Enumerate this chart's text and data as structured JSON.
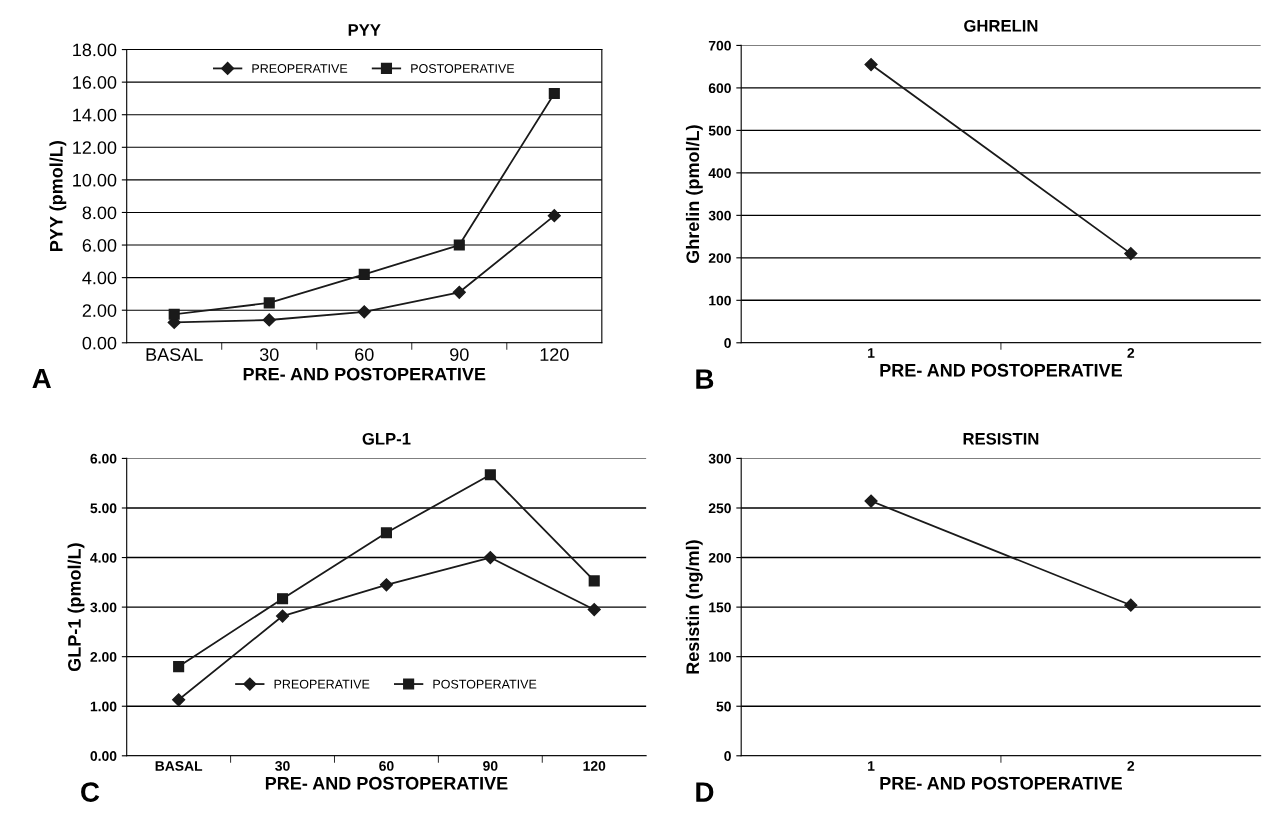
{
  "chart_data": [
    {
      "type": "line",
      "title": "PYY",
      "xlabel": "PRE- AND POSTOPERATIVE",
      "ylabel": "PYY (pmol/L)",
      "annotations": [
        "A"
      ],
      "categories": [
        "BASAL",
        "30",
        "60",
        "90",
        "120"
      ],
      "series": [
        {
          "name": "PREOPERATIVE",
          "color": "#1a1a1a",
          "marker": "diamond",
          "values": [
            1.25,
            1.4,
            1.9,
            3.1,
            7.8
          ]
        },
        {
          "name": "POSTOPERATIVE",
          "color": "#1a1a1a",
          "marker": "square",
          "values": [
            1.75,
            2.45,
            4.2,
            6.0,
            15.3
          ]
        }
      ],
      "ylim": [
        0,
        18
      ],
      "yticks": [
        {
          "value": 0,
          "label": "0.00"
        },
        {
          "value": 2,
          "label": "2.00"
        },
        {
          "value": 4,
          "label": "4.00"
        },
        {
          "value": 6,
          "label": "6.00"
        },
        {
          "value": 8,
          "label": "8.00"
        },
        {
          "value": 10,
          "label": "10.00"
        },
        {
          "value": 12,
          "label": "12.00"
        },
        {
          "value": 14,
          "label": "14.00"
        },
        {
          "value": 16,
          "label": "16.00"
        },
        {
          "value": 18,
          "label": "18.00"
        }
      ],
      "grid": "y",
      "legend": "top"
    },
    {
      "type": "line",
      "title": "GHRELIN",
      "xlabel": "PRE- AND POSTOPERATIVE",
      "ylabel": "Ghrelin (pmol/L)",
      "annotations": [
        "B"
      ],
      "categories": [
        "1",
        "2"
      ],
      "series": [
        {
          "color": "#1a1a1a",
          "marker": "diamond",
          "values": [
            655,
            210
          ]
        }
      ],
      "ylim": [
        0,
        700
      ],
      "yticks": [
        0,
        100,
        200,
        300,
        400,
        500,
        600,
        700
      ],
      "grid": "y"
    },
    {
      "type": "line",
      "title": "GLP-1",
      "xlabel": "PRE- AND POSTOPERATIVE",
      "ylabel": "GLP-1 (pmol/L)",
      "annotations": [
        "C"
      ],
      "categories": [
        "BASAL",
        "30",
        "60",
        "90",
        "120"
      ],
      "series": [
        {
          "name": "PREOPERATIVE",
          "color": "#1a1a1a",
          "marker": "diamond",
          "values": [
            1.13,
            2.82,
            3.45,
            4.0,
            2.95
          ]
        },
        {
          "name": "POSTOPERATIVE",
          "color": "#1a1a1a",
          "marker": "square",
          "values": [
            1.8,
            3.17,
            4.5,
            5.67,
            3.53
          ]
        }
      ],
      "ylim": [
        0,
        6
      ],
      "yticks": [
        {
          "value": 0,
          "label": "0.00"
        },
        {
          "value": 1,
          "label": "1.00"
        },
        {
          "value": 2,
          "label": "2.00"
        },
        {
          "value": 3,
          "label": "3.00"
        },
        {
          "value": 4,
          "label": "4.00"
        },
        {
          "value": 5,
          "label": "5.00"
        },
        {
          "value": 6,
          "label": "6.00"
        }
      ],
      "grid": "y",
      "legend": "bottom"
    },
    {
      "type": "line",
      "title": "RESISTIN",
      "xlabel": "PRE- AND POSTOPERATIVE",
      "ylabel": "Resistin (ng/ml)",
      "annotations": [
        "D"
      ],
      "categories": [
        "1",
        "2"
      ],
      "series": [
        {
          "color": "#1a1a1a",
          "marker": "diamond",
          "values": [
            257,
            152
          ]
        }
      ],
      "ylim": [
        0,
        300
      ],
      "yticks": [
        0,
        50,
        100,
        150,
        200,
        250,
        300
      ],
      "grid": "y"
    }
  ]
}
